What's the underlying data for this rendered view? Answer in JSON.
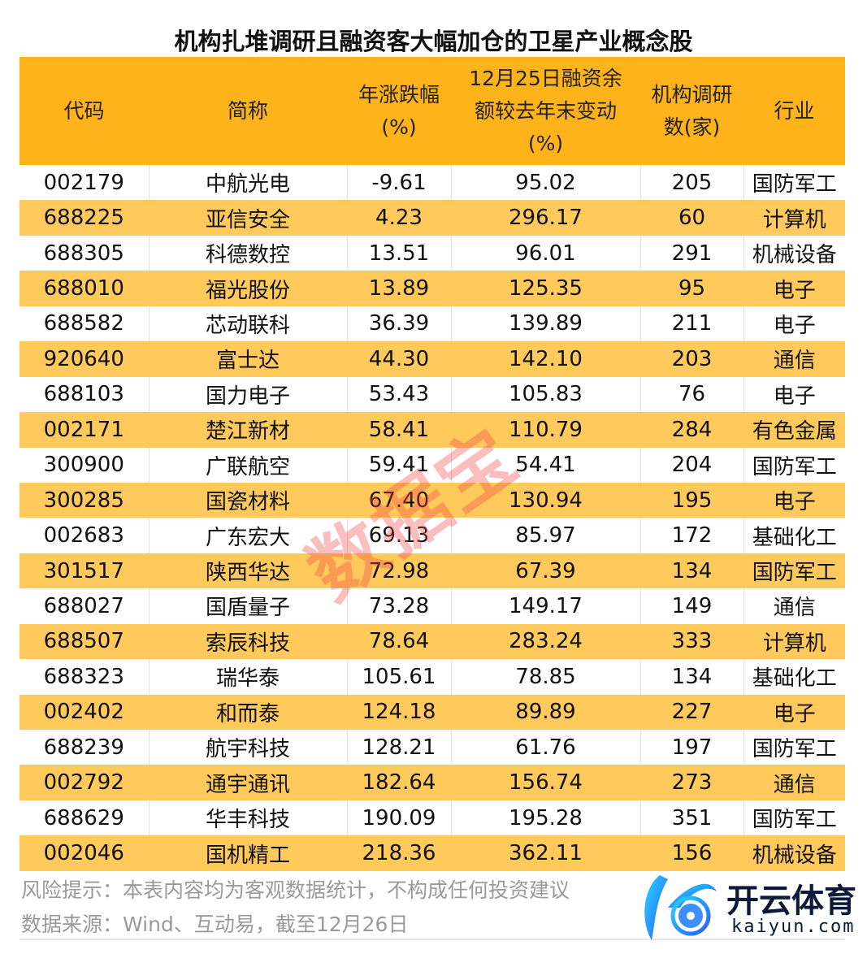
{
  "title": "机构扎堆调研且融资客大幅加仓的卫星产业概念股",
  "colors": {
    "header": "#FFB31A",
    "alt_row": "#FFC95C",
    "watermark": "#F04646"
  },
  "table": {
    "headers": [
      "代码",
      "简称",
      "年涨跌幅\n(%)",
      "12月25日融资余\n额较去年末变动\n(%)",
      "机构调研\n数(家)",
      "行业"
    ],
    "rows": [
      [
        "002179",
        "中航光电",
        "-9.61",
        "95.02",
        "205",
        "国防军工"
      ],
      [
        "688225",
        "亚信安全",
        "4.23",
        "296.17",
        "60",
        "计算机"
      ],
      [
        "688305",
        "科德数控",
        "13.51",
        "96.01",
        "291",
        "机械设备"
      ],
      [
        "688010",
        "福光股份",
        "13.89",
        "125.35",
        "95",
        "电子"
      ],
      [
        "688582",
        "芯动联科",
        "36.39",
        "139.89",
        "211",
        "电子"
      ],
      [
        "920640",
        "富士达",
        "44.30",
        "142.10",
        "203",
        "通信"
      ],
      [
        "688103",
        "国力电子",
        "53.43",
        "105.83",
        "76",
        "电子"
      ],
      [
        "002171",
        "楚江新材",
        "58.41",
        "110.79",
        "284",
        "有色金属"
      ],
      [
        "300900",
        "广联航空",
        "59.41",
        "54.41",
        "204",
        "国防军工"
      ],
      [
        "300285",
        "国瓷材料",
        "67.40",
        "130.94",
        "195",
        "电子"
      ],
      [
        "002683",
        "广东宏大",
        "69.13",
        "85.97",
        "172",
        "基础化工"
      ],
      [
        "301517",
        "陕西华达",
        "72.98",
        "67.39",
        "134",
        "国防军工"
      ],
      [
        "688027",
        "国盾量子",
        "73.28",
        "149.17",
        "149",
        "通信"
      ],
      [
        "688507",
        "索辰科技",
        "78.64",
        "283.24",
        "333",
        "计算机"
      ],
      [
        "688323",
        "瑞华泰",
        "105.61",
        "78.85",
        "134",
        "基础化工"
      ],
      [
        "002402",
        "和而泰",
        "124.18",
        "89.89",
        "227",
        "电子"
      ],
      [
        "688239",
        "航宇科技",
        "128.21",
        "61.76",
        "197",
        "国防军工"
      ],
      [
        "002792",
        "通宇通讯",
        "182.64",
        "156.74",
        "273",
        "通信"
      ],
      [
        "688629",
        "华丰科技",
        "190.09",
        "195.28",
        "351",
        "国防军工"
      ],
      [
        "002046",
        "国机精工",
        "218.36",
        "362.11",
        "156",
        "机械设备"
      ]
    ]
  },
  "footer": {
    "risk": "风险提示：本表内容均为客观数据统计，不构成任何投资建议",
    "source": "数据来源：Wind、互动易，截至12月26日"
  },
  "watermark": "数据宝",
  "logo": {
    "brand": "开云体育",
    "domain": "kaiyun.com",
    "icon": "k-soccer-ball-logo-icon"
  }
}
